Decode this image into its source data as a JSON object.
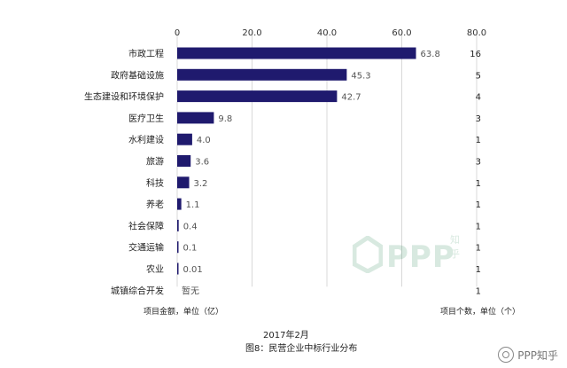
{
  "chart_data": {
    "type": "bar",
    "orientation": "horizontal",
    "categories": [
      "市政工程",
      "政府基础设施",
      "生态建设和环境保护",
      "医疗卫生",
      "水利建设",
      "旅游",
      "科技",
      "养老",
      "社会保障",
      "交通运输",
      "农业",
      "城镇综合开发"
    ],
    "values": [
      63.8,
      45.3,
      42.7,
      9.8,
      4.0,
      3.6,
      3.2,
      1.1,
      0.4,
      0.1,
      0.01,
      0
    ],
    "value_labels": [
      "63.8",
      "45.3",
      "42.7",
      "9.8",
      "4.0",
      "3.6",
      "3.2",
      "1.1",
      "0.4",
      "0.1",
      "0.01",
      "暂无"
    ],
    "counts": [
      "16",
      "5",
      "4",
      "3",
      "1",
      "3",
      "1",
      "1",
      "1",
      "1",
      "1",
      "1"
    ],
    "xticks": [
      "0",
      "20.0",
      "40.0",
      "60.0",
      "80.0"
    ],
    "xlim": [
      0,
      80
    ],
    "xlabel": "项目金额，单位（亿）",
    "count_label": "项目个数，单位（个）",
    "subtitle": "2017年2月",
    "title": "图8：民营企业中标行业分布",
    "bar_color": "#1f1a6e",
    "grid": true
  },
  "watermark": {
    "text": "PPP",
    "sub": "知乎"
  },
  "badge": {
    "text": "PPP知乎"
  }
}
